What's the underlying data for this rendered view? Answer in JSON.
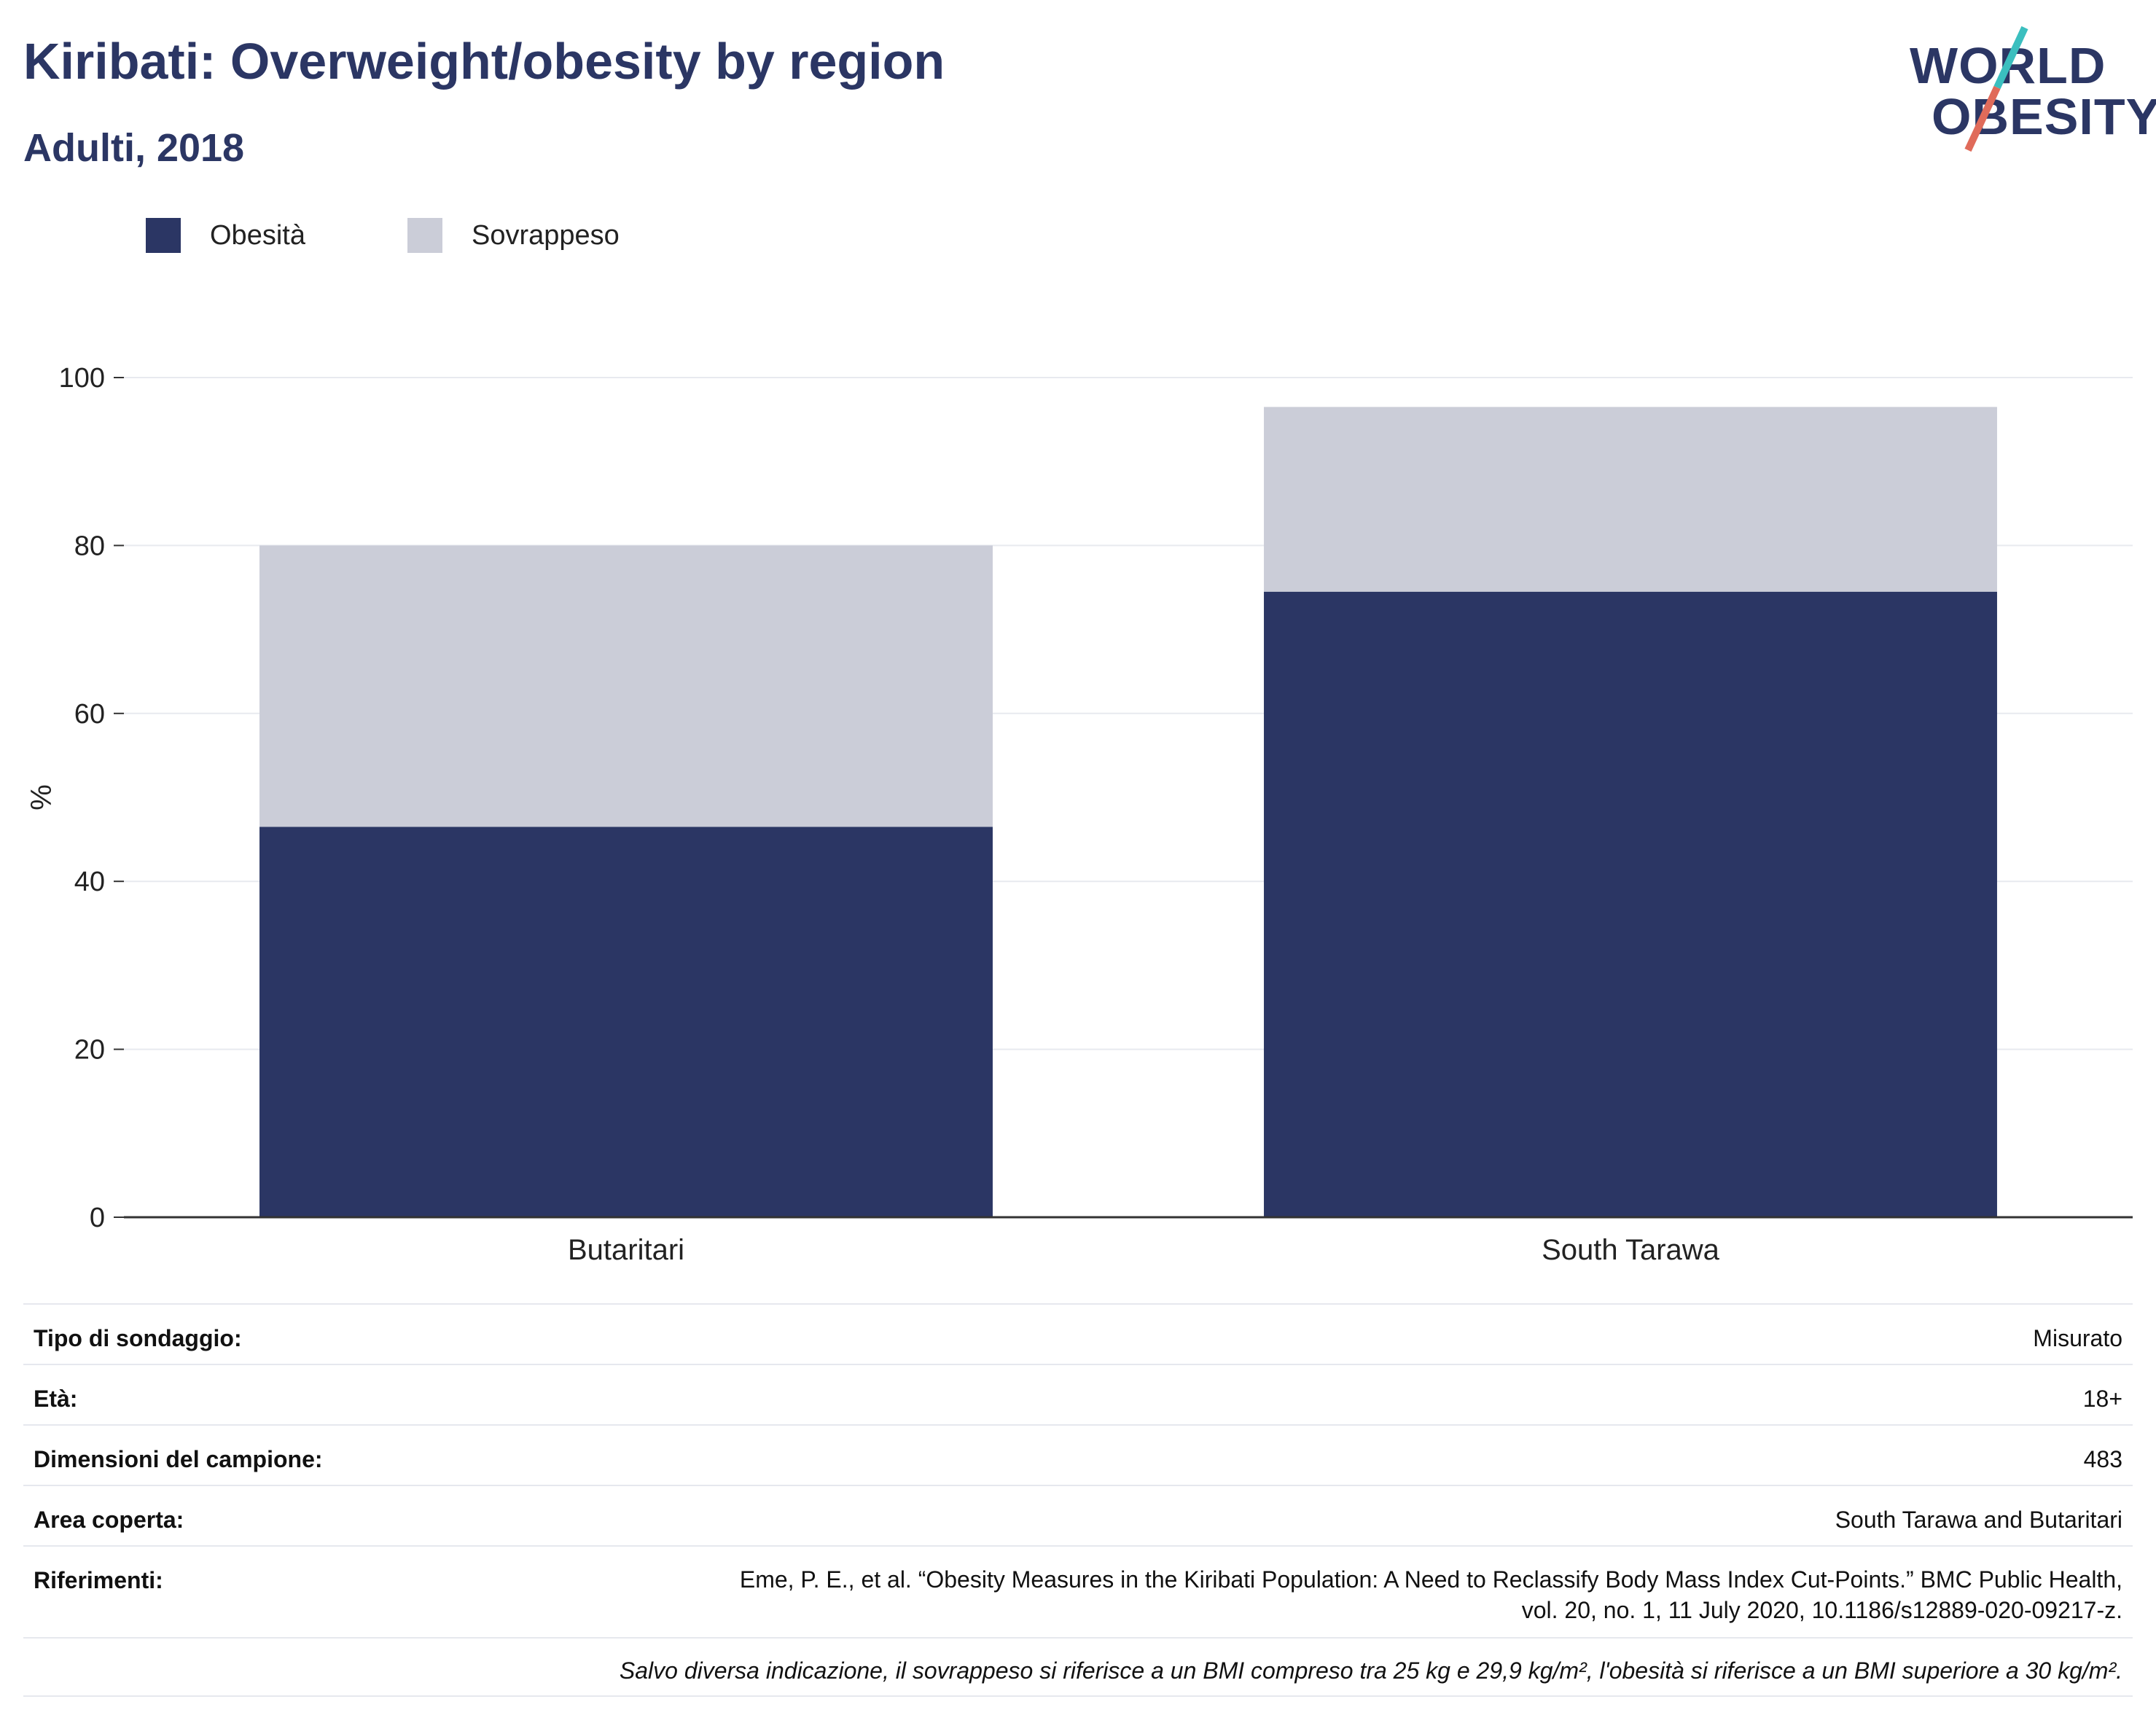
{
  "header": {
    "title": "Kiribati: Overweight/obesity by region",
    "subtitle": "Adulti, 2018"
  },
  "logo": {
    "line1": "WORLD",
    "line2": "OBESITY",
    "colors": {
      "text": "#2b3664",
      "slash_top": "#3bbfbf",
      "slash_bottom": "#e06b5a"
    }
  },
  "legend": {
    "items": [
      {
        "label": "Obesità",
        "color": "#2b3664"
      },
      {
        "label": "Sovrappeso",
        "color": "#cbcdd8"
      }
    ]
  },
  "chart_data": {
    "type": "bar",
    "stacked": true,
    "categories": [
      "Butaritari",
      "South Tarawa"
    ],
    "series": [
      {
        "name": "Obesità",
        "values": [
          46.5,
          74.5
        ],
        "color": "#2b3664"
      },
      {
        "name": "Sovrappeso",
        "values": [
          33.5,
          22.0
        ],
        "color": "#cbcdd8"
      }
    ],
    "title": "",
    "xlabel": "",
    "ylabel": "%",
    "ylim": [
      0,
      100
    ],
    "yticks": [
      0,
      20,
      40,
      60,
      80,
      100
    ],
    "grid": true,
    "legend_position": "top-left"
  },
  "info": {
    "rows": [
      {
        "key": "Tipo di sondaggio:",
        "value": "Misurato"
      },
      {
        "key": "Età:",
        "value": "18+"
      },
      {
        "key": "Dimensioni del campione:",
        "value": "483"
      },
      {
        "key": "Area coperta:",
        "value": "South Tarawa and Butaritari"
      },
      {
        "key": "Riferimenti:",
        "value": "Eme, P. E., et al. “Obesity Measures in the Kiribati Population: A Need to Reclassify Body Mass Index Cut-Points.” BMC Public Health,\nvol. 20, no. 1, 11 July 2020, 10.1186/s12889-020-09217-z."
      }
    ],
    "note": "Salvo diversa indicazione, il sovrappeso si riferisce a un BMI compreso tra 25 kg e 29,9 kg/m², l'obesità si riferisce a un BMI superiore a 30 kg/m²."
  }
}
